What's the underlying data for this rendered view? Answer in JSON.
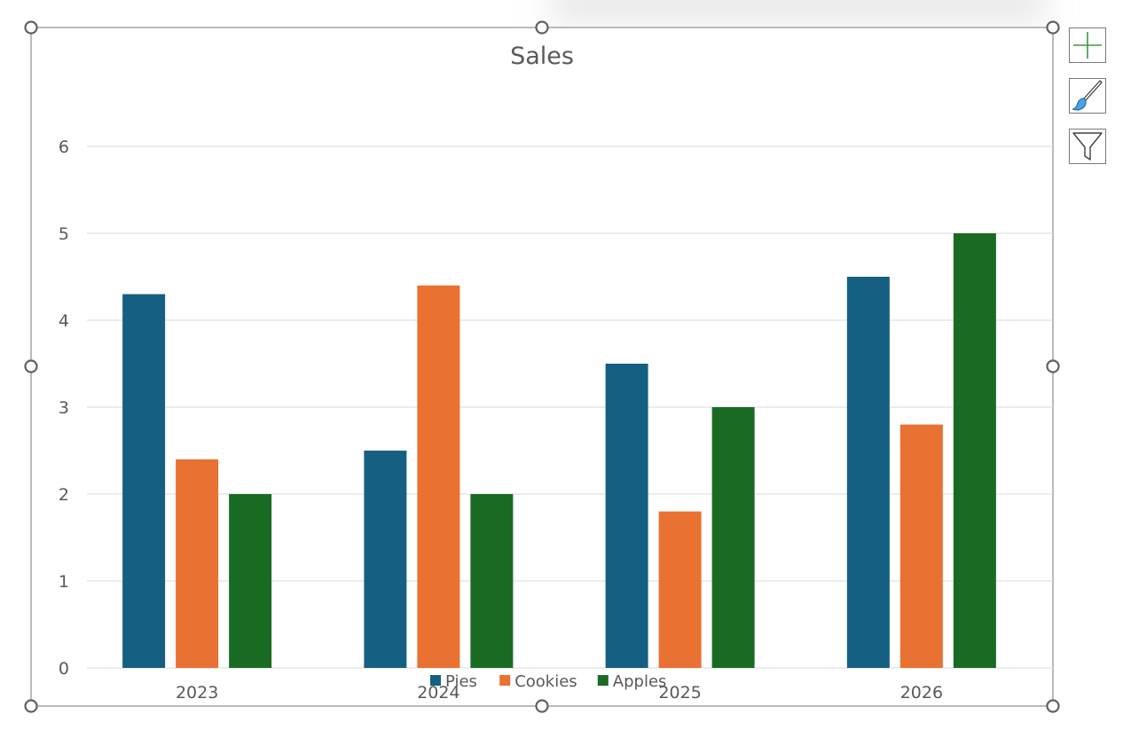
{
  "colors": {
    "pies": "#156082",
    "cookies": "#E97132",
    "apples": "#196B24",
    "gridline": "#d9d9d9",
    "text": "#595959",
    "frame": "#767676"
  },
  "toolbar": {
    "elements_icon": "plus-icon",
    "styles_icon": "paintbrush-icon",
    "filters_icon": "funnel-icon"
  },
  "chart_data": {
    "type": "bar",
    "title": "Sales",
    "categories": [
      "2023",
      "2024",
      "2025",
      "2026"
    ],
    "series": [
      {
        "name": "Pies",
        "values": [
          4.3,
          2.5,
          3.5,
          4.5
        ],
        "color": "#156082"
      },
      {
        "name": "Cookies",
        "values": [
          2.4,
          4.4,
          1.8,
          2.8
        ],
        "color": "#E97132"
      },
      {
        "name": "Apples",
        "values": [
          2.0,
          2.0,
          3.0,
          5.0
        ],
        "color": "#196B24"
      }
    ],
    "ylim": [
      0,
      6
    ],
    "yticks": [
      "0",
      "1",
      "2",
      "3",
      "4",
      "5",
      "6"
    ],
    "grid": true,
    "legend": "bottom"
  }
}
